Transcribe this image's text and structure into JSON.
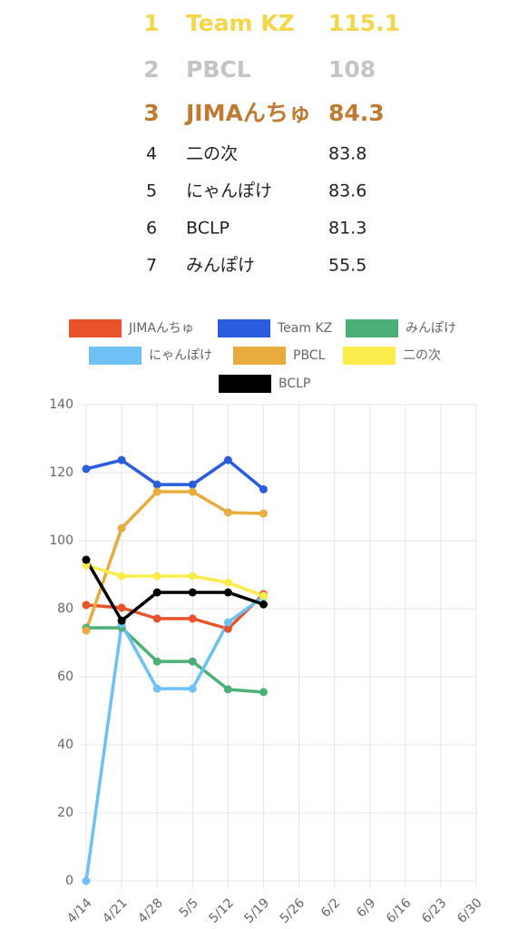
{
  "ranking": [
    {
      "rank": 1,
      "name": "Team KZ",
      "score": 115.1
    },
    {
      "rank": 2,
      "name": "PBCL",
      "score": 108
    },
    {
      "rank": 3,
      "name": "JIMAんちゅ",
      "score": 84.3
    },
    {
      "rank": 4,
      "name": "二の次",
      "score": 83.8
    },
    {
      "rank": 5,
      "name": "にゃんぽけ",
      "score": 83.6
    },
    {
      "rank": 6,
      "name": "BCLP",
      "score": 81.3
    },
    {
      "rank": 7,
      "name": "みんぽけ",
      "score": 55.5
    }
  ],
  "chart_data": {
    "type": "line",
    "categories": [
      "4/14",
      "4/21",
      "4/28",
      "5/5",
      "5/12",
      "5/19",
      "5/26",
      "6/2",
      "6/9",
      "6/16",
      "6/23",
      "6/30"
    ],
    "series": [
      {
        "name": "JIMAんちゅ",
        "color": "#e8532e",
        "values": [
          81.1,
          80.3,
          77.1,
          77.1,
          74.1,
          84.3,
          null,
          null,
          null,
          null,
          null,
          null
        ]
      },
      {
        "name": "Team KZ",
        "color": "#2a5ddd",
        "values": [
          121.1,
          123.7,
          116.5,
          116.5,
          123.7,
          115.1,
          null,
          null,
          null,
          null,
          null,
          null
        ]
      },
      {
        "name": "みんぽけ",
        "color": "#4caf77",
        "values": [
          74.4,
          74.4,
          64.5,
          64.5,
          56.3,
          55.5,
          null,
          null,
          null,
          null,
          null,
          null
        ]
      },
      {
        "name": "にゃんぽけ",
        "color": "#6ec1f5",
        "values": [
          0,
          75.5,
          56.5,
          56.5,
          76,
          83.6,
          null,
          null,
          null,
          null,
          null,
          null
        ]
      },
      {
        "name": "PBCL",
        "color": "#e8ab3e",
        "values": [
          73.6,
          103.7,
          114.4,
          114.4,
          108.3,
          108,
          null,
          null,
          null,
          null,
          null,
          null
        ]
      },
      {
        "name": "二の次",
        "color": "#fbeb4b",
        "values": [
          92.8,
          89.6,
          89.6,
          89.6,
          87.7,
          83.8,
          null,
          null,
          null,
          null,
          null,
          null
        ]
      },
      {
        "name": "BCLP",
        "color": "#000000",
        "values": [
          94.4,
          76.5,
          84.8,
          84.8,
          84.8,
          81.3,
          null,
          null,
          null,
          null,
          null,
          null
        ]
      }
    ],
    "ylim": [
      0,
      140
    ],
    "yticks": [
      0,
      20,
      40,
      60,
      80,
      100,
      120,
      140
    ],
    "grid": true,
    "legend": "top"
  }
}
